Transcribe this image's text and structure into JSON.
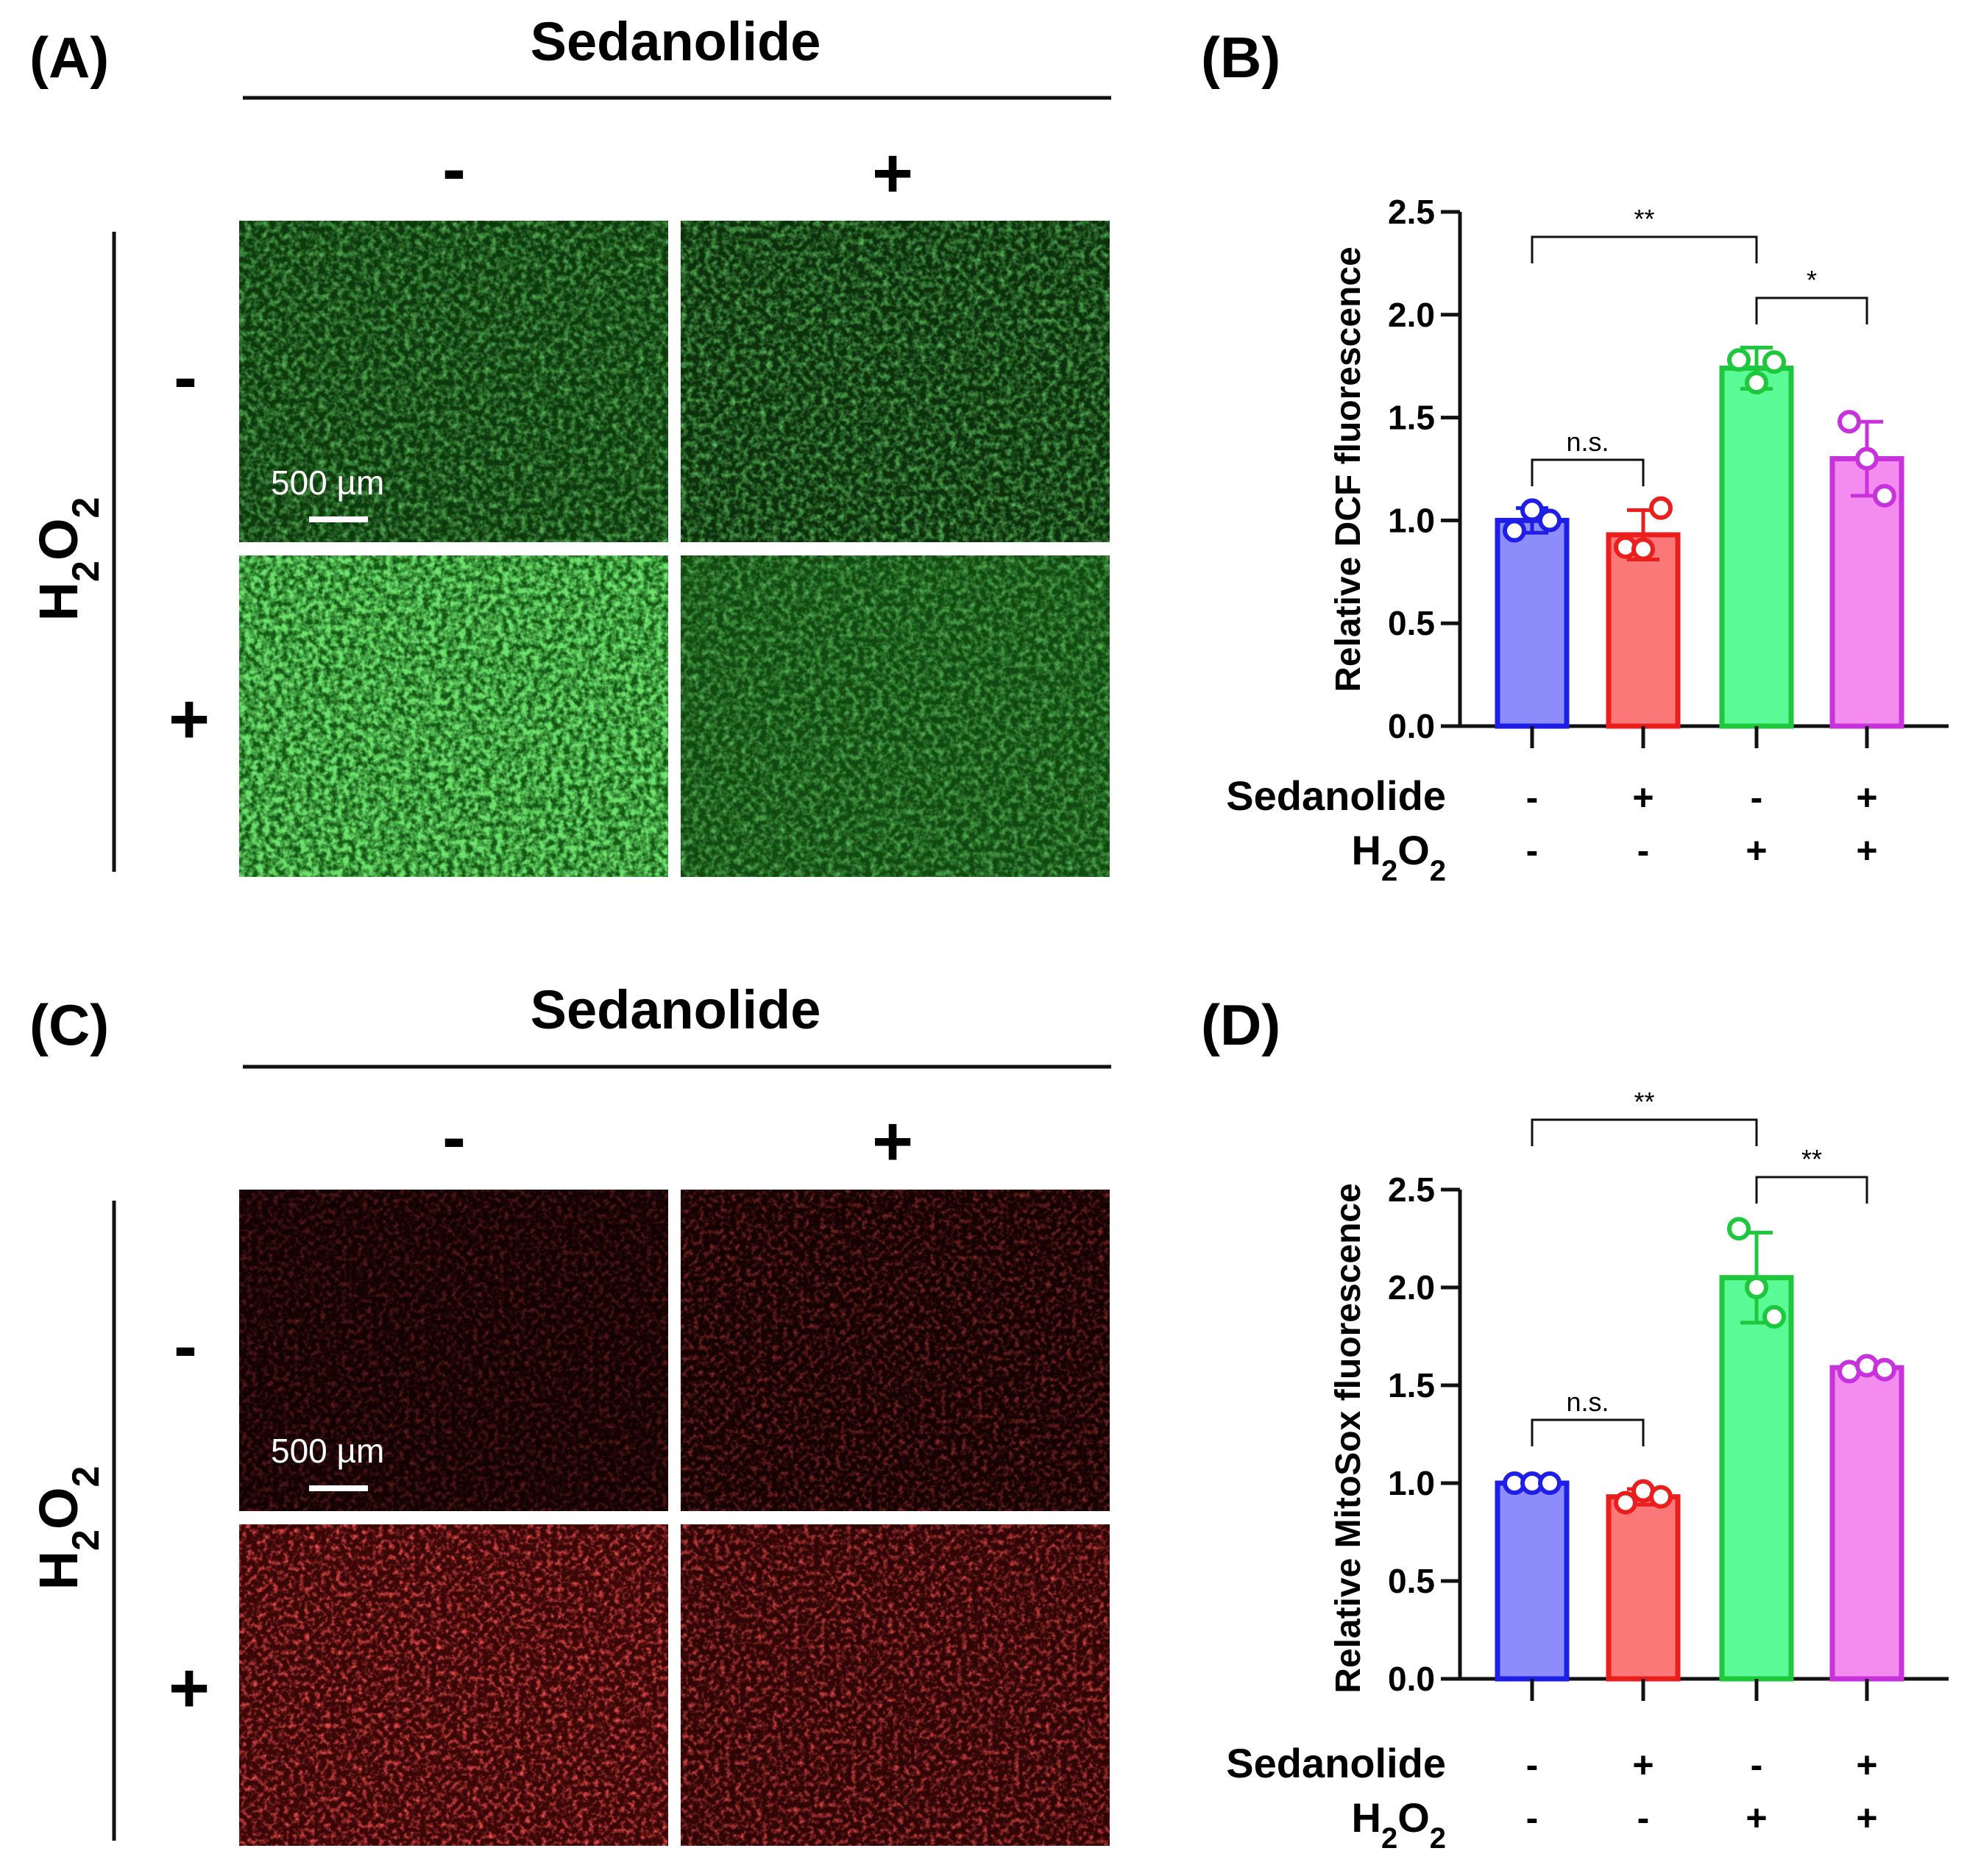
{
  "colors": {
    "group_fill": [
      "#8c8cfa",
      "#fa7878",
      "#5afa96",
      "#f48cf0"
    ],
    "group_stroke": [
      "#1e1ee6",
      "#eb1e1e",
      "#1ec83c",
      "#c832dc"
    ],
    "dcf_bg": "#0a2a0a",
    "dcf_dot": "#3cc83c",
    "mito_bg": "#180303",
    "mito_dot": "#ff2020"
  },
  "panel_A": {
    "label": "(A)",
    "column_title": "Sedanolide",
    "col_minus": "-",
    "col_plus": "+",
    "row_title": "H2O2",
    "row_minus": "-",
    "row_plus": "+",
    "scale_bar": "500 µm"
  },
  "panel_C": {
    "label": "(C)",
    "column_title": "Sedanolide",
    "col_minus": "-",
    "col_plus": "+",
    "row_title": "H2O2",
    "row_minus": "-",
    "row_plus": "+",
    "scale_bar": "500 µm"
  },
  "chart_data": [
    {
      "panel": "(B)",
      "type": "bar",
      "ylabel": "Relative DCF fluorescence",
      "ylim": [
        0,
        2.5
      ],
      "yticks": [
        "0.0",
        "0.5",
        "1.0",
        "1.5",
        "2.0",
        "2.5"
      ],
      "values": [
        1.0,
        0.93,
        1.74,
        1.3
      ],
      "errors": [
        0.06,
        0.12,
        0.1,
        0.18
      ],
      "points": [
        [
          0.95,
          1.05,
          1.0
        ],
        [
          0.87,
          0.86,
          1.06
        ],
        [
          1.78,
          1.67,
          1.77
        ],
        [
          1.48,
          1.3,
          1.12
        ]
      ],
      "conditions": {
        "Sedanolide": [
          "-",
          "+",
          "-",
          "+"
        ],
        "H2O2": [
          "-",
          "-",
          "+",
          "+"
        ]
      },
      "row_labels": {
        "sedanolide": "Sedanolide",
        "h2o2": "H2O2"
      },
      "significance": [
        {
          "from": 0,
          "to": 1,
          "label": "n.s."
        },
        {
          "from": 0,
          "to": 2,
          "label": "**"
        },
        {
          "from": 2,
          "to": 3,
          "label": "*"
        }
      ]
    },
    {
      "panel": "(D)",
      "type": "bar",
      "ylabel": "Relative MitoSox fluorescence",
      "ylim": [
        0,
        2.5
      ],
      "yticks": [
        "0.0",
        "0.5",
        "1.0",
        "1.5",
        "2.0",
        "2.5"
      ],
      "values": [
        1.0,
        0.93,
        2.05,
        1.59
      ],
      "errors": [
        0.02,
        0.04,
        0.23,
        0.02
      ],
      "points": [
        [
          1.0,
          1.0,
          1.0
        ],
        [
          0.9,
          0.96,
          0.93
        ],
        [
          2.3,
          2.0,
          1.85
        ],
        [
          1.57,
          1.6,
          1.58
        ]
      ],
      "conditions": {
        "Sedanolide": [
          "-",
          "+",
          "-",
          "+"
        ],
        "H2O2": [
          "-",
          "-",
          "+",
          "+"
        ]
      },
      "row_labels": {
        "sedanolide": "Sedanolide",
        "h2o2": "H2O2"
      },
      "significance": [
        {
          "from": 0,
          "to": 1,
          "label": "n.s."
        },
        {
          "from": 0,
          "to": 2,
          "label": "**"
        },
        {
          "from": 2,
          "to": 3,
          "label": "**"
        }
      ]
    }
  ]
}
